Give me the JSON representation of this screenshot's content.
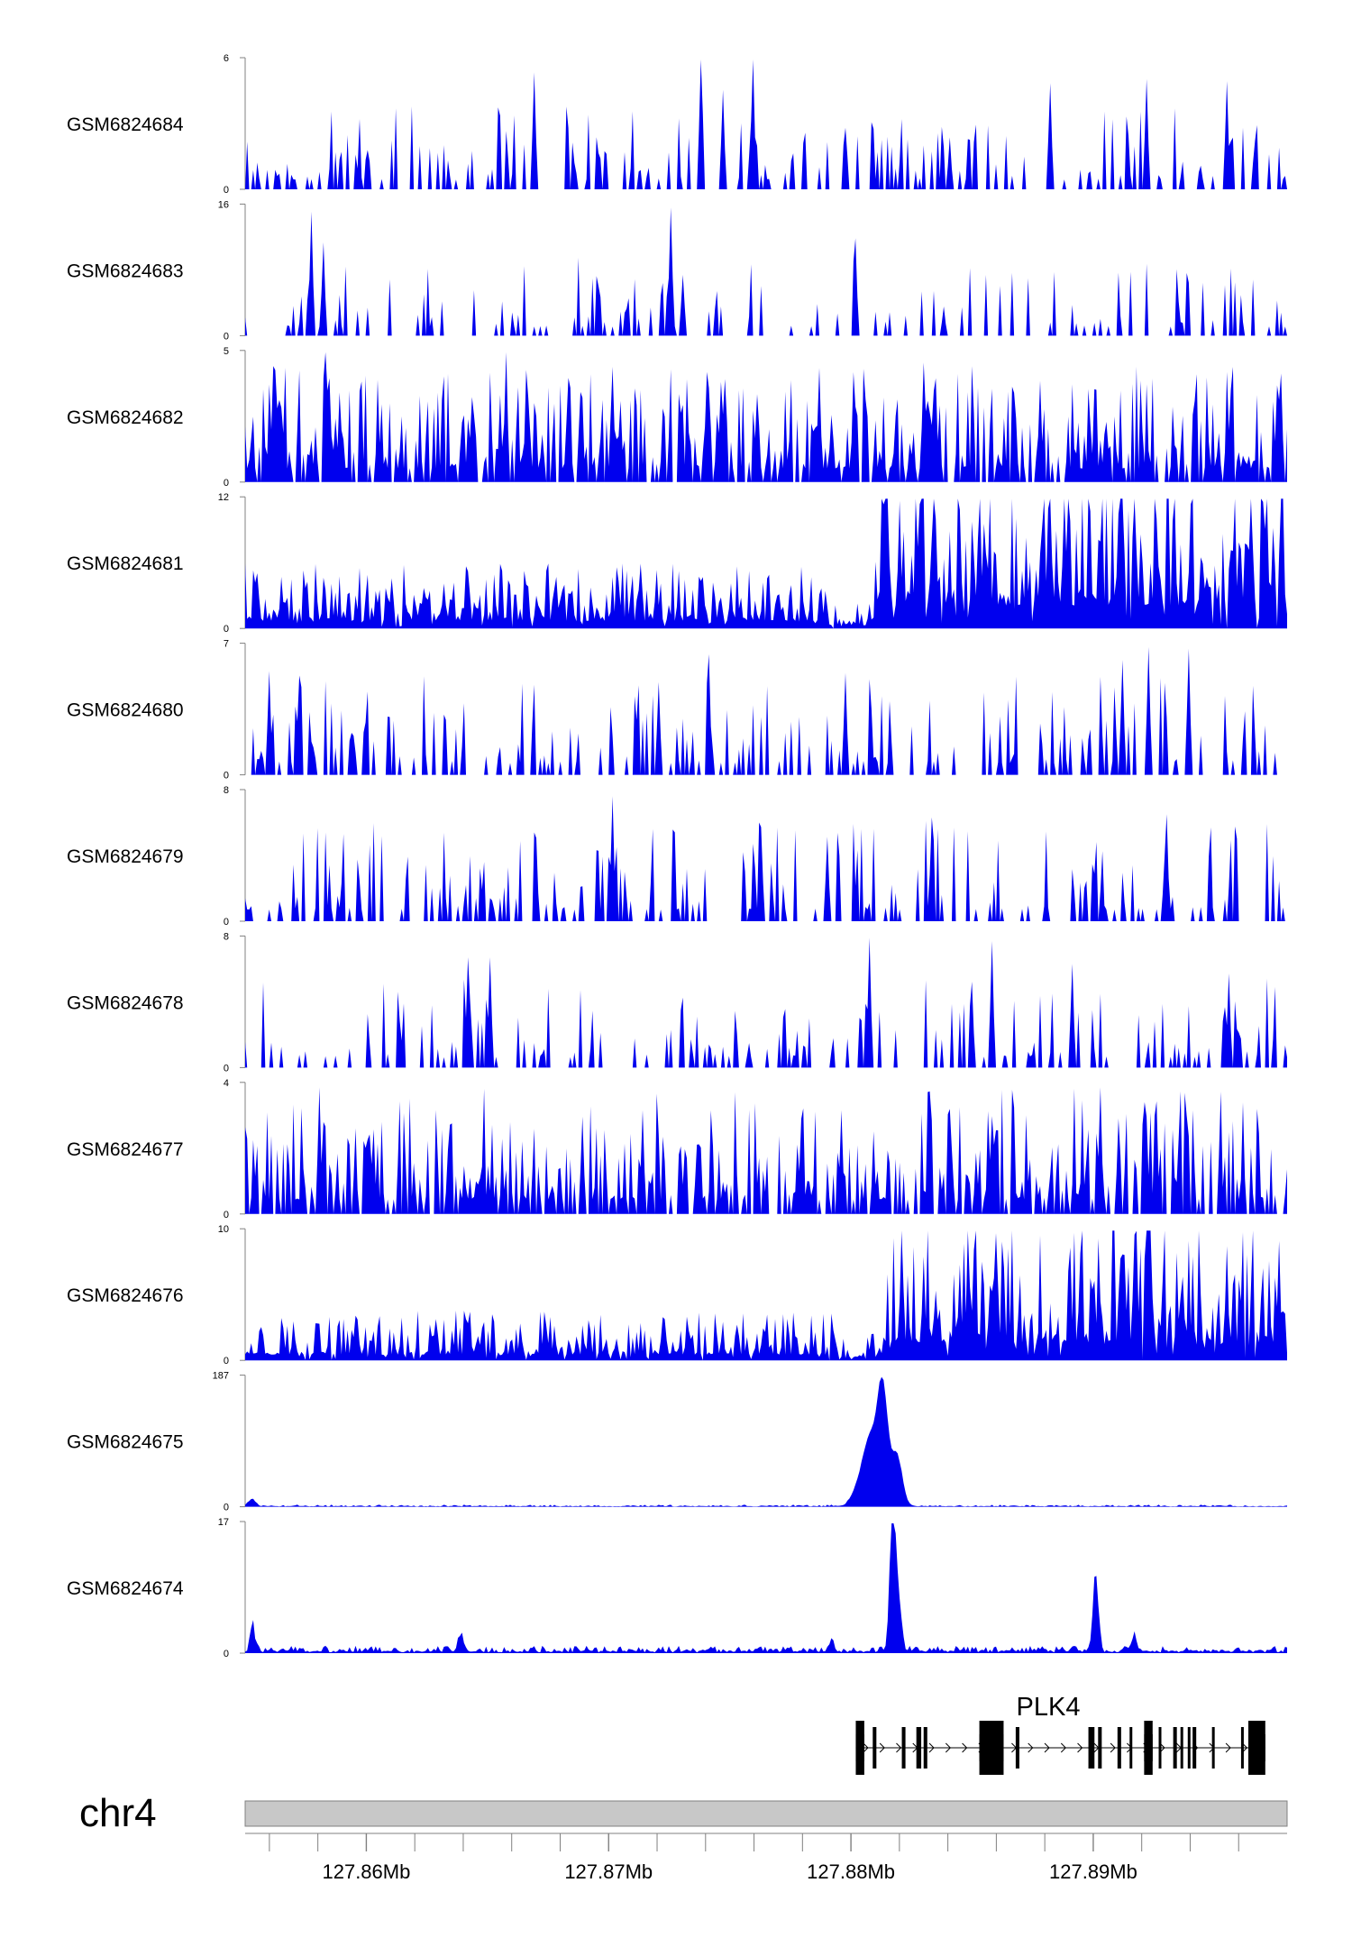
{
  "colors": {
    "signal": "#0000ee",
    "axis": "#808080",
    "ideogram_fill": "#c8c8c8",
    "gene": "#000000"
  },
  "chart_data": {
    "type": "area",
    "chromosome": "chr4",
    "xlim": [
      127855000,
      127898000
    ],
    "xticks": [
      127860000,
      127870000,
      127880000,
      127890000
    ],
    "xtick_labels": [
      "127.86Mb",
      "127.87Mb",
      "127.88Mb",
      "127.89Mb"
    ],
    "tracks": [
      {
        "name": "GSM6824684",
        "ymax": 6,
        "ymin_label": "0",
        "ymax_label": "6",
        "style": "sparse",
        "seed": 11,
        "density": 0.55,
        "level": 0.3,
        "peaks": [
          [
            127866900,
            5.4
          ],
          [
            127873800,
            6.0
          ],
          [
            127876000,
            6.0
          ],
          [
            127874700,
            4.6
          ],
          [
            127888200,
            4.9
          ],
          [
            127892200,
            5.1
          ],
          [
            127895500,
            5.0
          ],
          [
            127884100,
            2.4
          ]
        ]
      },
      {
        "name": "GSM6824683",
        "ymax": 16,
        "ymin_label": "0",
        "ymax_label": "16",
        "style": "sparse",
        "seed": 23,
        "density": 0.35,
        "level": 0.28,
        "peaks": [
          [
            127857700,
            15.3
          ],
          [
            127858200,
            11.5
          ],
          [
            127872600,
            15.8
          ],
          [
            127873100,
            7.5
          ],
          [
            127880200,
            12.0
          ],
          [
            127893500,
            4.2
          ],
          [
            127883800,
            3.6
          ]
        ]
      },
      {
        "name": "GSM6824682",
        "ymax": 5,
        "ymin_label": "0",
        "ymax_label": "5",
        "style": "noisy",
        "seed": 37,
        "density": 0.75,
        "level": 0.42,
        "peaks": [
          [
            127858300,
            5.0
          ],
          [
            127865800,
            5.0
          ],
          [
            127878700,
            4.4
          ],
          [
            127883000,
            4.6
          ],
          [
            127887800,
            3.9
          ],
          [
            127883500,
            4.0
          ]
        ]
      },
      {
        "name": "GSM6824681",
        "ymax": 12,
        "ymin_label": "0",
        "ymax_label": "12",
        "style": "regional",
        "seed": 41,
        "density": 0.9,
        "level": 0.2,
        "regions": [
          [
            127855000,
            127879000,
            2.8
          ],
          [
            127879000,
            127881000,
            1.2
          ],
          [
            127881000,
            127898000,
            8.5
          ]
        ],
        "peaks": [
          [
            127872000,
            5.4
          ],
          [
            127882000,
            11.8
          ],
          [
            127882800,
            11.5
          ],
          [
            127891000,
            10.6
          ],
          [
            127894000,
            11.5
          ],
          [
            127897000,
            11.7
          ]
        ]
      },
      {
        "name": "GSM6824680",
        "ymax": 7,
        "ymin_label": "0",
        "ymax_label": "7",
        "style": "sparse",
        "seed": 53,
        "density": 0.6,
        "level": 0.36,
        "peaks": [
          [
            127856000,
            5.6
          ],
          [
            127874100,
            6.5
          ],
          [
            127879800,
            5.5
          ],
          [
            127891200,
            6.2
          ],
          [
            127892300,
            6.9
          ],
          [
            127893900,
            6.8
          ],
          [
            127872100,
            5.0
          ]
        ]
      },
      {
        "name": "GSM6824679",
        "ymax": 8,
        "ymin_label": "0",
        "ymax_label": "8",
        "style": "sparse",
        "seed": 67,
        "density": 0.65,
        "level": 0.36,
        "peaks": [
          [
            127870200,
            7.7
          ],
          [
            127883300,
            6.4
          ],
          [
            127893000,
            6.6
          ],
          [
            127876300,
            5.8
          ],
          [
            127879000,
            5.2
          ]
        ]
      },
      {
        "name": "GSM6824678",
        "ymax": 8,
        "ymin_label": "0",
        "ymax_label": "8",
        "style": "sparse",
        "seed": 79,
        "density": 0.55,
        "level": 0.32,
        "peaks": [
          [
            127864200,
            6.8
          ],
          [
            127865100,
            6.8
          ],
          [
            127880800,
            8.0
          ],
          [
            127885800,
            7.8
          ],
          [
            127885000,
            5.3
          ],
          [
            127889100,
            6.4
          ],
          [
            127895600,
            5.8
          ]
        ]
      },
      {
        "name": "GSM6824677",
        "ymax": 4,
        "ymin_label": "0",
        "ymax_label": "4",
        "style": "noisy",
        "seed": 83,
        "density": 0.7,
        "level": 0.45,
        "peaks": [
          [
            127858100,
            3.9
          ],
          [
            127879600,
            3.2
          ],
          [
            127890300,
            3.9
          ],
          [
            127892200,
            3.0
          ],
          [
            127868900,
            3.0
          ],
          [
            127871400,
            3.2
          ]
        ]
      },
      {
        "name": "GSM6824676",
        "ymax": 10,
        "ymin_label": "0",
        "ymax_label": "10",
        "style": "regional",
        "seed": 97,
        "density": 0.9,
        "level": 0.2,
        "regions": [
          [
            127855000,
            127879500,
            1.8
          ],
          [
            127879500,
            127881500,
            1.0
          ],
          [
            127881500,
            127898000,
            5.5
          ]
        ],
        "peaks": [
          [
            127886000,
            9.8
          ],
          [
            127885100,
            8.5
          ],
          [
            127883000,
            8.0
          ],
          [
            127895500,
            8.8
          ],
          [
            127897700,
            9.2
          ]
        ]
      },
      {
        "name": "GSM6824675",
        "ymax": 187,
        "ymin_label": "0",
        "ymax_label": "187",
        "style": "peak",
        "seed": 101,
        "base": 2.5,
        "peaks": [
          [
            127881300,
            175,
            220
          ],
          [
            127880800,
            80,
            250
          ],
          [
            127881900,
            72,
            220
          ],
          [
            127880400,
            35,
            300
          ],
          [
            127855300,
            9,
            150
          ]
        ]
      },
      {
        "name": "GSM6824674",
        "ymax": 17,
        "ymin_label": "0",
        "ymax_label": "17",
        "style": "peak",
        "seed": 113,
        "base": 0.8,
        "peaks": [
          [
            127881700,
            16.5,
            110
          ],
          [
            127881900,
            9.0,
            140
          ],
          [
            127890100,
            10.2,
            110
          ],
          [
            127855300,
            3.6,
            90
          ],
          [
            127891700,
            2.6,
            80
          ],
          [
            127863900,
            2.0,
            120
          ],
          [
            127879200,
            1.8,
            80
          ]
        ]
      }
    ],
    "gene": {
      "name": "PLK4",
      "strand": "+",
      "start": 127880200,
      "end": 127897100,
      "exons": [
        [
          127880200,
          127880550
        ],
        [
          127880900,
          127881050
        ],
        [
          127882100,
          127882250
        ],
        [
          127882700,
          127882900
        ],
        [
          127883000,
          127883150
        ],
        [
          127885300,
          127886300
        ],
        [
          127886800,
          127886950
        ],
        [
          127889800,
          127890050
        ],
        [
          127890200,
          127890350
        ],
        [
          127891000,
          127891150
        ],
        [
          127891500,
          127891600
        ],
        [
          127892100,
          127892450
        ],
        [
          127892700,
          127892800
        ],
        [
          127893300,
          127893450
        ],
        [
          127893600,
          127893700
        ],
        [
          127893900,
          127894000
        ],
        [
          127894100,
          127894250
        ],
        [
          127894900,
          127895000
        ],
        [
          127896100,
          127896200
        ],
        [
          127896400,
          127897100
        ]
      ]
    }
  }
}
